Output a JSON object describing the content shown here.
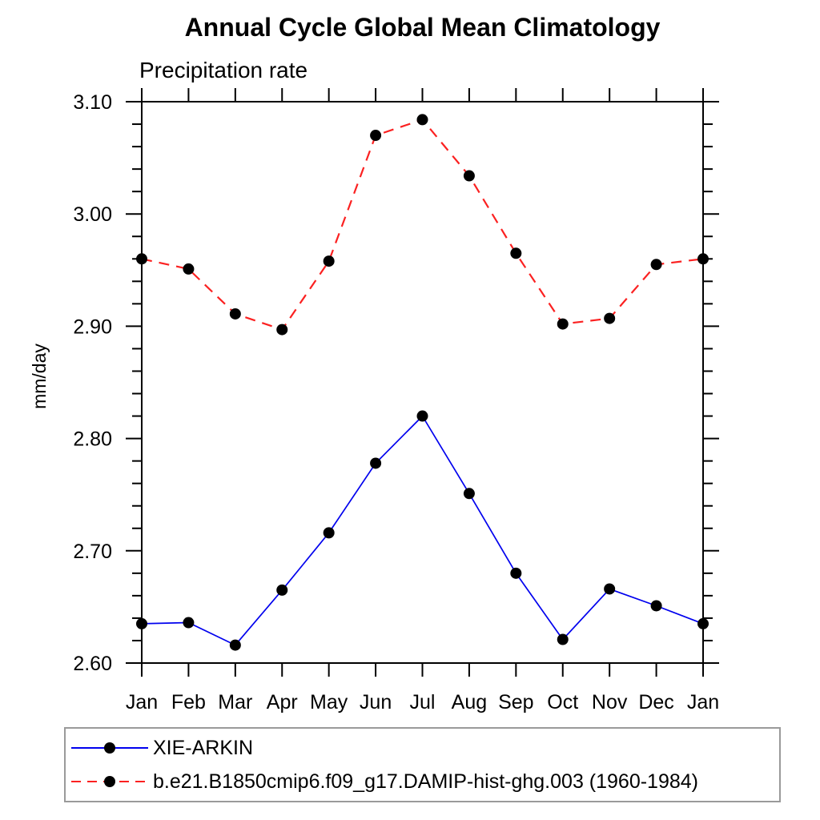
{
  "chart_data": {
    "type": "line",
    "title": "Annual Cycle Global Mean Climatology",
    "subtitle_left": "Precipitation rate",
    "ylabel": "mm/day",
    "xlabel": "",
    "categories": [
      "Jan",
      "Feb",
      "Mar",
      "Apr",
      "May",
      "Jun",
      "Jul",
      "Aug",
      "Sep",
      "Oct",
      "Nov",
      "Dec",
      "Jan"
    ],
    "ylim": [
      2.6,
      3.1
    ],
    "ytick_major_step": 0.1,
    "ytick_minor_step": 0.02,
    "ytick_labels": [
      "2.60",
      "2.70",
      "2.80",
      "2.90",
      "3.00",
      "3.10"
    ],
    "grid": false,
    "legend_position": "bottom-left-box",
    "series": [
      {
        "name": "XIE-ARKIN",
        "color": "#0000ee",
        "style": "solid",
        "marker": "circle",
        "marker_color": "#000000",
        "values": [
          2.635,
          2.636,
          2.616,
          2.665,
          2.716,
          2.778,
          2.82,
          2.751,
          2.68,
          2.621,
          2.666,
          2.651,
          2.635
        ]
      },
      {
        "name": "b.e21.B1850cmip6.f09_g17.DAMIP-hist-ghg.003 (1960-1984)",
        "color": "#fb2121",
        "style": "dashed",
        "marker": "circle",
        "marker_color": "#000000",
        "values": [
          2.96,
          2.951,
          2.911,
          2.897,
          2.958,
          3.07,
          3.084,
          3.034,
          2.965,
          2.902,
          2.907,
          2.955,
          2.96
        ]
      }
    ]
  },
  "colors": {
    "axis": "#000000",
    "text": "#000000",
    "legend_border": "#9a9a9a",
    "background": "#ffffff"
  }
}
